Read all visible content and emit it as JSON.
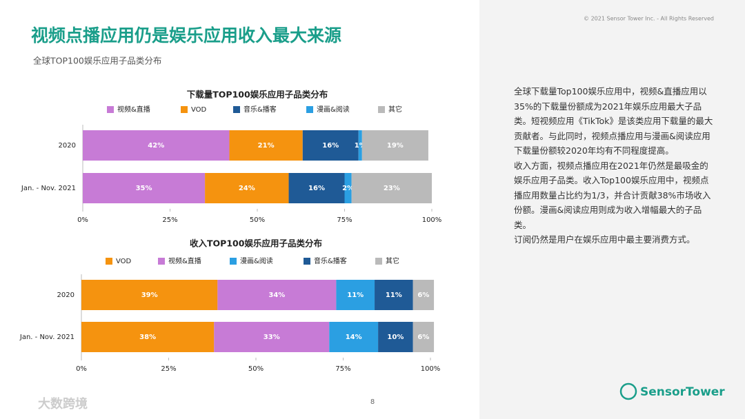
{
  "page": {
    "title": "视频点播应用仍是娱乐应用收入最大来源",
    "subtitle": "全球TOP100娱乐应用子品类分布",
    "copyright": "© 2021 Sensor Tower Inc. - All Rights Reserved",
    "body": [
      "全球下载量Top100娱乐应用中，视频&直播应用以35%的下载量份额成为2021年娱乐应用最大子品类。短视频应用《TikTok》是该类应用下载量的最大贡献者。与此同时，视频点播应用与漫画&阅读应用下载量份额较2020年均有不同程度提高。",
      "收入方面，视频点播应用在2021年仍然是最吸金的娱乐应用子品类。收入Top100娱乐应用中，视频点播应用数量占比约为1/3，并合计贡献38%市场收入份额。漫画&阅读应用则成为收入增幅最大的子品类。",
      "订阅仍然是用户在娱乐应用中最主要消费方式。"
    ],
    "page_number": "8",
    "logo": "SensorTower",
    "watermark": "大数跨境"
  },
  "chart_data": [
    {
      "type": "stacked-bar-horizontal",
      "title": "下载量TOP100娱乐应用子品类分布",
      "categories": [
        "2020",
        "Jan. - Nov. 2021"
      ],
      "series": [
        {
          "name": "视频&直播",
          "color": "#c77bd6",
          "values": [
            42,
            35
          ],
          "value_labels": [
            "42%",
            "35%"
          ]
        },
        {
          "name": "VOD",
          "color": "#f5930f",
          "values": [
            21,
            24
          ],
          "value_labels": [
            "21%",
            "24%"
          ]
        },
        {
          "name": "音乐&播客",
          "color": "#1f5a96",
          "values": [
            16,
            16
          ],
          "value_labels": [
            "16%",
            "16%"
          ]
        },
        {
          "name": "漫画&阅读",
          "color": "#2b9fe2",
          "values": [
            1,
            2
          ],
          "value_labels": [
            "1%",
            "2%"
          ]
        },
        {
          "name": "其它",
          "color": "#bababa",
          "values": [
            19,
            23
          ],
          "value_labels": [
            "19%",
            "23%"
          ]
        }
      ],
      "xlim": [
        0,
        100
      ],
      "xticks": [
        {
          "value": 0,
          "label": "0%"
        },
        {
          "value": 25,
          "label": "25%"
        },
        {
          "value": 50,
          "label": "50%"
        },
        {
          "value": 75,
          "label": "75%"
        },
        {
          "value": 100,
          "label": "100%"
        }
      ],
      "legend": "top"
    },
    {
      "type": "stacked-bar-horizontal",
      "title": "收入TOP100娱乐应用子品类分布",
      "categories": [
        "2020",
        "Jan. - Nov. 2021"
      ],
      "series": [
        {
          "name": "VOD",
          "color": "#f5930f",
          "values": [
            39,
            38
          ],
          "value_labels": [
            "39%",
            "38%"
          ]
        },
        {
          "name": "视频&直播",
          "color": "#c77bd6",
          "values": [
            34,
            33
          ],
          "value_labels": [
            "34%",
            "33%"
          ]
        },
        {
          "name": "漫画&阅读",
          "color": "#2b9fe2",
          "values": [
            11,
            14
          ],
          "value_labels": [
            "11%",
            "14%"
          ]
        },
        {
          "name": "音乐&播客",
          "color": "#1f5a96",
          "values": [
            11,
            10
          ],
          "value_labels": [
            "11%",
            "10%"
          ]
        },
        {
          "name": "其它",
          "color": "#bababa",
          "values": [
            6,
            6
          ],
          "value_labels": [
            "6%",
            "6%"
          ]
        }
      ],
      "xlim": [
        0,
        100
      ],
      "xticks": [
        {
          "value": 0,
          "label": "0%"
        },
        {
          "value": 25,
          "label": "25%"
        },
        {
          "value": 50,
          "label": "50%"
        },
        {
          "value": 75,
          "label": "75%"
        },
        {
          "value": 100,
          "label": "100%"
        }
      ],
      "legend": "top"
    }
  ]
}
